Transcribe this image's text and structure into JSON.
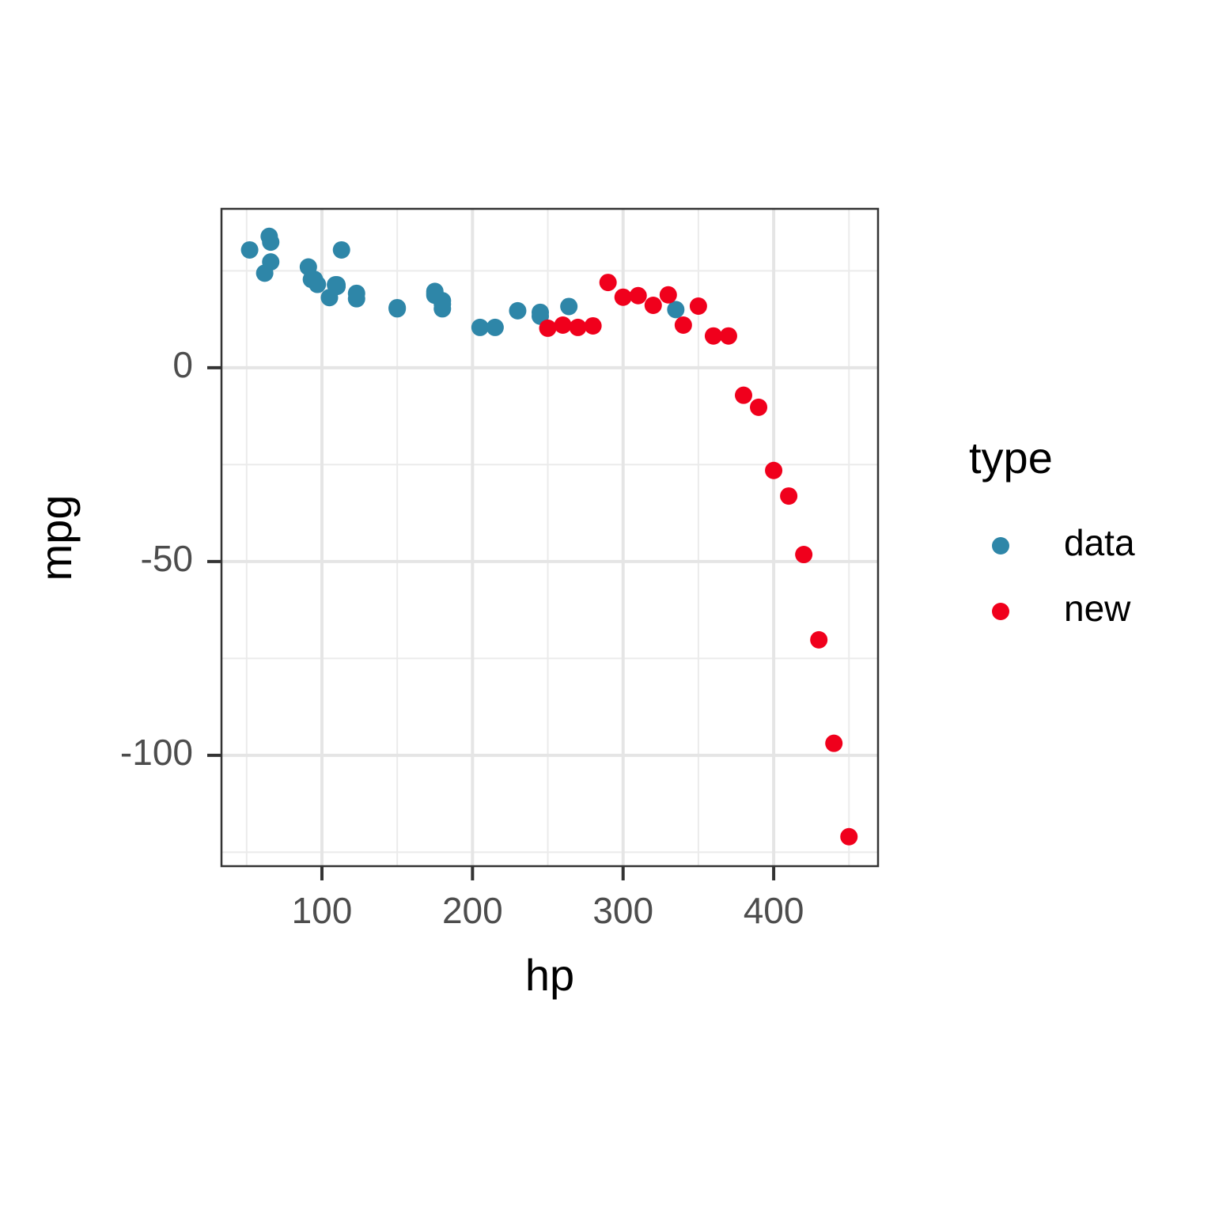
{
  "chart_data": {
    "type": "scatter",
    "x_label": "hp",
    "y_label": "mpg",
    "legend_title": "type",
    "xlim": [
      33.3,
      469.3
    ],
    "ylim": [
      -128.6,
      41.0
    ],
    "xticks": [
      100,
      200,
      300,
      400
    ],
    "yticks": [
      -100,
      -50,
      0
    ],
    "grid": true,
    "legend": "right",
    "series": [
      {
        "name": "data",
        "color": "#2e86a8",
        "x": [
          110,
          110,
          93,
          110,
          175,
          105,
          245,
          62,
          95,
          123,
          123,
          180,
          180,
          180,
          205,
          215,
          230,
          66,
          52,
          65,
          97,
          150,
          150,
          245,
          175,
          66,
          91,
          113,
          264,
          175,
          335,
          109
        ],
        "values": [
          21.0,
          21.0,
          22.8,
          21.4,
          18.7,
          18.1,
          14.3,
          24.4,
          22.8,
          19.2,
          17.8,
          16.4,
          17.3,
          15.2,
          10.4,
          10.4,
          14.7,
          32.4,
          30.4,
          33.9,
          21.5,
          15.5,
          15.2,
          13.3,
          19.2,
          27.3,
          26.0,
          30.4,
          15.8,
          19.7,
          15.0,
          21.4
        ]
      },
      {
        "name": "new",
        "color": "#f0001c",
        "x": [
          250,
          260,
          270,
          280,
          290,
          300,
          310,
          320,
          330,
          340,
          350,
          360,
          370,
          380,
          390,
          400,
          410,
          420,
          430,
          440,
          450
        ],
        "values": [
          10.2,
          11.0,
          10.4,
          10.8,
          22.0,
          18.2,
          18.6,
          16.1,
          18.8,
          11.0,
          15.9,
          8.2,
          8.2,
          -7.1,
          -10.2,
          -26.5,
          -33.1,
          -48.2,
          -70.2,
          -96.9,
          -121.0
        ]
      }
    ]
  }
}
